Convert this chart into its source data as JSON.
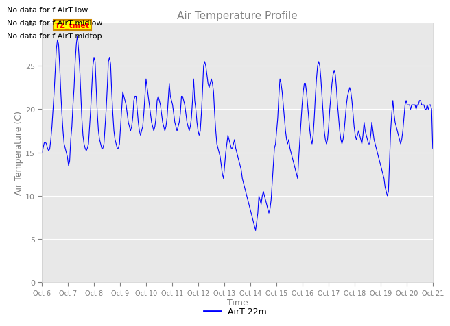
{
  "title": "Air Temperature Profile",
  "xlabel": "Time",
  "ylabel": "Air Temperature (C)",
  "legend_label": "AirT 22m",
  "line_color": "blue",
  "ylim": [
    0,
    30
  ],
  "yticks": [
    0,
    5,
    10,
    15,
    20,
    25,
    30
  ],
  "no_data_texts": [
    "No data for f AirT low",
    "No data for f AirT midlow",
    "No data for f AirT midtop"
  ],
  "tz_tmet_text": "TZ_tmet",
  "background_color": "#ffffff",
  "plot_bg_color": "#e8e8e8",
  "grid_color": "#ffffff",
  "title_color": "#808080",
  "axis_label_color": "#808080",
  "tick_color": "#808080",
  "no_data_color": "#000000",
  "xticklabels": [
    "Oct 6",
    "Oct 7",
    "Oct 8",
    "Oct 9",
    "Oct 10",
    "Oct 11",
    "Oct 12",
    "Oct 13",
    "Oct 14",
    "Oct 15",
    "Oct 16",
    "Oct 17",
    "Oct 18",
    "Oct 19",
    "Oct 20",
    "Oct 21"
  ],
  "airt_data": [
    15.0,
    15.5,
    16.1,
    16.2,
    16.0,
    15.5,
    15.2,
    15.4,
    16.5,
    18.0,
    20.0,
    22.0,
    24.5,
    27.0,
    28.0,
    27.5,
    25.0,
    22.0,
    19.5,
    17.5,
    16.0,
    15.5,
    15.0,
    14.5,
    13.5,
    14.0,
    16.5,
    18.0,
    20.5,
    22.5,
    25.5,
    27.5,
    28.5,
    27.0,
    25.0,
    22.0,
    19.0,
    17.0,
    16.0,
    15.5,
    15.2,
    15.5,
    16.0,
    18.0,
    20.0,
    22.5,
    25.0,
    26.0,
    25.5,
    22.5,
    19.5,
    17.5,
    16.5,
    16.0,
    15.5,
    15.5,
    16.0,
    18.0,
    20.0,
    22.5,
    25.5,
    26.0,
    25.2,
    22.0,
    19.5,
    17.5,
    16.5,
    16.0,
    15.5,
    15.5,
    16.0,
    18.0,
    20.0,
    22.0,
    21.5,
    21.0,
    20.5,
    19.5,
    18.5,
    18.0,
    17.5,
    18.0,
    19.0,
    21.0,
    21.5,
    21.5,
    20.0,
    18.5,
    17.5,
    17.0,
    17.5,
    18.0,
    19.5,
    21.5,
    23.5,
    22.5,
    21.5,
    20.5,
    19.5,
    18.5,
    18.0,
    17.5,
    18.0,
    19.0,
    21.0,
    21.5,
    21.0,
    20.5,
    19.5,
    18.5,
    18.0,
    17.5,
    18.0,
    19.0,
    21.0,
    23.0,
    21.5,
    21.0,
    20.5,
    19.5,
    18.5,
    18.0,
    17.5,
    18.0,
    18.5,
    19.5,
    21.5,
    21.5,
    21.0,
    20.5,
    19.5,
    18.5,
    18.0,
    17.5,
    18.0,
    19.0,
    21.0,
    23.5,
    21.0,
    20.0,
    18.5,
    17.5,
    17.0,
    17.5,
    19.5,
    22.0,
    25.0,
    25.5,
    25.0,
    24.0,
    23.0,
    22.5,
    23.0,
    23.5,
    23.0,
    22.0,
    19.5,
    17.5,
    16.0,
    15.5,
    15.0,
    14.5,
    13.5,
    12.5,
    12.0,
    13.5,
    15.0,
    16.0,
    17.0,
    16.5,
    16.0,
    15.5,
    15.5,
    16.0,
    16.5,
    15.5,
    15.0,
    14.5,
    14.0,
    13.5,
    13.0,
    12.0,
    11.5,
    11.0,
    10.5,
    10.0,
    9.5,
    9.0,
    8.5,
    8.0,
    7.5,
    7.0,
    6.5,
    6.0,
    7.0,
    8.0,
    10.0,
    9.5,
    9.0,
    10.0,
    10.5,
    10.0,
    9.5,
    9.0,
    8.5,
    8.0,
    8.5,
    9.5,
    11.5,
    13.5,
    15.5,
    16.0,
    17.5,
    19.0,
    21.5,
    23.5,
    23.0,
    22.0,
    20.5,
    19.0,
    17.5,
    16.5,
    16.0,
    16.5,
    15.5,
    15.0,
    14.5,
    14.0,
    13.5,
    13.0,
    12.5,
    12.0,
    14.5,
    16.5,
    18.5,
    20.5,
    22.0,
    23.0,
    23.0,
    22.0,
    20.5,
    19.0,
    17.5,
    16.5,
    16.0,
    17.0,
    19.0,
    21.5,
    23.5,
    25.0,
    25.5,
    25.0,
    23.5,
    21.5,
    19.5,
    17.5,
    16.5,
    16.0,
    16.5,
    18.0,
    20.0,
    21.5,
    23.0,
    24.0,
    24.5,
    24.0,
    22.5,
    20.5,
    19.0,
    17.5,
    16.5,
    16.0,
    16.5,
    17.5,
    19.0,
    20.5,
    21.5,
    22.0,
    22.5,
    22.0,
    21.0,
    19.5,
    18.0,
    17.0,
    16.5,
    17.0,
    17.5,
    17.0,
    16.5,
    16.0,
    17.0,
    18.5,
    17.5,
    17.0,
    16.5,
    16.0,
    16.0,
    17.0,
    18.5,
    17.5,
    16.5,
    16.0,
    15.5,
    15.0,
    14.5,
    14.0,
    13.5,
    13.0,
    12.5,
    12.0,
    11.0,
    10.5,
    10.0,
    10.5,
    14.0,
    17.5,
    19.5,
    21.0,
    19.5,
    18.5,
    18.0,
    17.5,
    17.0,
    16.5,
    16.0,
    16.5,
    17.5,
    19.0,
    20.5,
    21.0,
    20.5,
    20.5,
    20.5,
    20.0,
    20.5,
    20.5,
    20.5,
    20.5,
    20.0,
    20.5,
    20.5,
    21.0,
    21.0,
    20.5,
    20.5,
    20.5,
    20.0,
    20.0,
    20.5,
    20.0,
    20.5,
    20.5,
    20.0,
    15.5
  ]
}
